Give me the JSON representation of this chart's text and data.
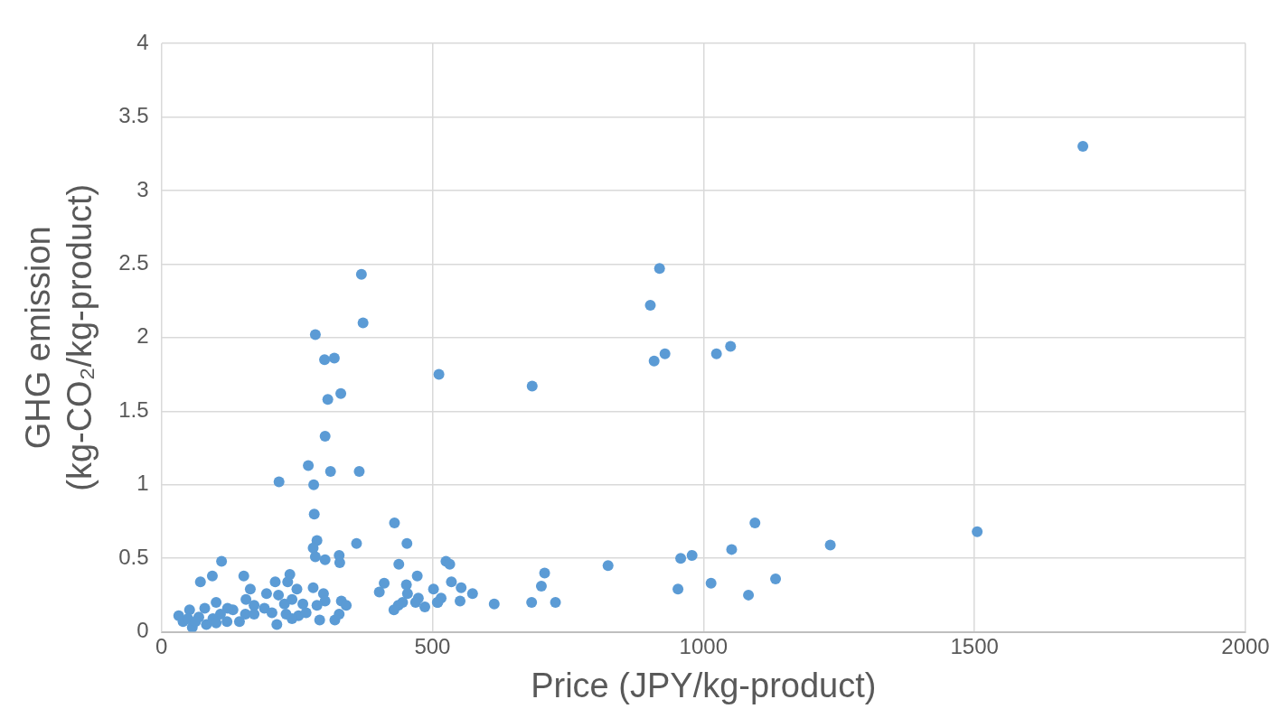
{
  "chart_data": {
    "type": "scatter",
    "xlabel": "Price (JPY/kg-product)",
    "ylabel": "GHG emission\n(kg-CO₂/kg-product)",
    "xlim": [
      0,
      2000
    ],
    "xticks": [
      0,
      500,
      1000,
      1500,
      2000
    ],
    "ylim": [
      0,
      4
    ],
    "yticks": [
      0,
      0.5,
      1,
      1.5,
      2,
      2.5,
      3,
      3.5,
      4
    ],
    "grid": true,
    "legend": false,
    "marker": "circle",
    "series": [
      {
        "color": "#5b9bd5",
        "x": [
          369,
          372,
          284,
          301,
          319,
          512,
          331,
          307,
          302,
          271,
          312,
          365,
          217,
          281,
          282,
          430,
          287,
          453,
          360,
          280,
          284,
          328,
          329,
          302,
          111,
          438,
          72,
          94,
          152,
          472,
          237,
          210,
          233,
          250,
          164,
          280,
          411,
          402,
          452,
          454,
          502,
          194,
          156,
          171,
          101,
          332,
          341,
          299,
          302,
          287,
          216,
          227,
          241,
          261,
          474,
          469,
          486,
          445,
          437,
          429,
          509,
          190,
          204,
          253,
          267,
          292,
          320,
          328,
          213,
          171,
          144,
          132,
          122,
          109,
          121,
          80,
          52,
          32,
          40,
          57,
          69,
          83,
          95,
          49,
          63,
          101,
          155,
          230,
          241,
          525,
          532,
          535,
          553,
          574,
          551,
          516,
          510,
          614,
          683,
          727,
          701,
          707,
          824,
          684,
          902,
          919,
          909,
          929,
          1024,
          1050,
          1095,
          1234,
          1505,
          1700,
          958,
          979,
          1052,
          953,
          1014,
          1083,
          1133
        ],
        "values": [
          2.43,
          2.1,
          2.02,
          1.85,
          1.86,
          1.75,
          1.62,
          1.58,
          1.33,
          1.13,
          1.09,
          1.09,
          1.02,
          1.0,
          0.8,
          0.74,
          0.62,
          0.6,
          0.6,
          0.57,
          0.51,
          0.52,
          0.47,
          0.49,
          0.48,
          0.46,
          0.34,
          0.38,
          0.38,
          0.38,
          0.39,
          0.34,
          0.34,
          0.29,
          0.29,
          0.3,
          0.33,
          0.27,
          0.32,
          0.26,
          0.29,
          0.26,
          0.22,
          0.18,
          0.2,
          0.21,
          0.18,
          0.26,
          0.21,
          0.18,
          0.25,
          0.19,
          0.22,
          0.19,
          0.23,
          0.2,
          0.17,
          0.2,
          0.18,
          0.15,
          0.2,
          0.16,
          0.13,
          0.11,
          0.13,
          0.08,
          0.08,
          0.12,
          0.05,
          0.12,
          0.07,
          0.15,
          0.16,
          0.12,
          0.07,
          0.16,
          0.15,
          0.11,
          0.07,
          0.03,
          0.1,
          0.05,
          0.09,
          0.09,
          0.07,
          0.06,
          0.12,
          0.12,
          0.09,
          0.48,
          0.46,
          0.34,
          0.3,
          0.26,
          0.21,
          0.23,
          0.2,
          0.19,
          0.2,
          0.2,
          0.31,
          0.4,
          0.45,
          1.67,
          2.22,
          2.47,
          1.84,
          1.89,
          1.89,
          1.94,
          0.74,
          0.59,
          0.68,
          3.3,
          0.5,
          0.52,
          0.56,
          0.29,
          0.33,
          0.25,
          0.36
        ]
      }
    ]
  }
}
